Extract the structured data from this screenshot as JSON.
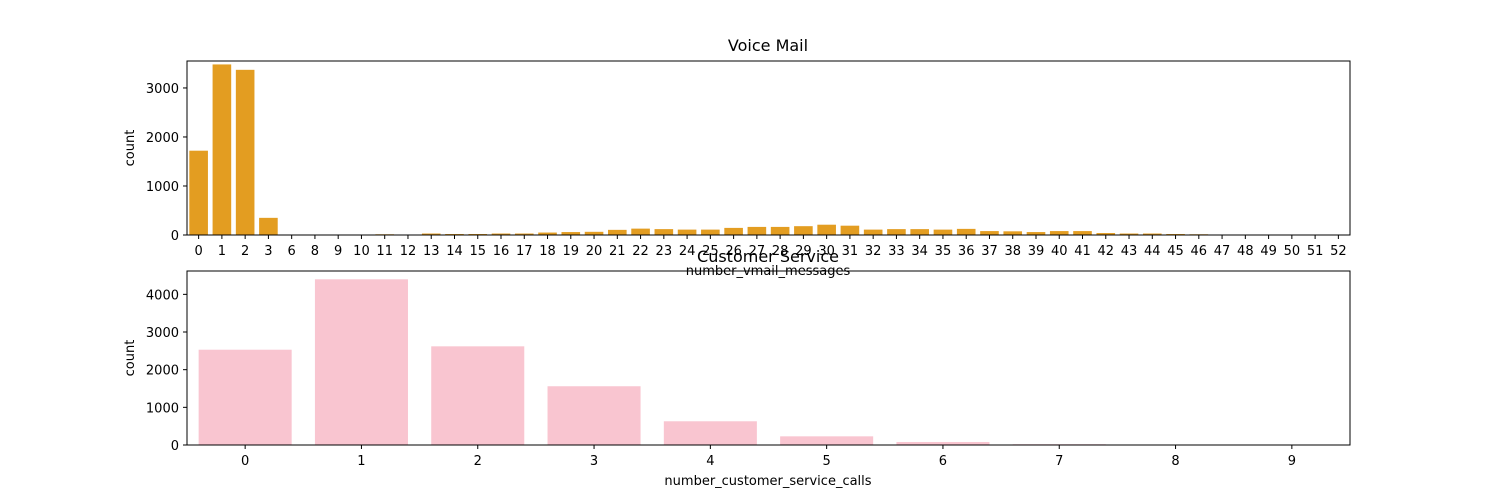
{
  "chart_data": [
    {
      "type": "bar",
      "title": "Voice Mail",
      "xlabel": "number_vmail_messages",
      "ylabel": "count",
      "color": "#e39d21",
      "ylim": [
        0,
        3550
      ],
      "yticks": [
        0,
        1000,
        2000,
        3000
      ],
      "categories": [
        "0",
        "1",
        "2",
        "3",
        "6",
        "8",
        "9",
        "10",
        "11",
        "12",
        "13",
        "14",
        "15",
        "16",
        "17",
        "18",
        "19",
        "20",
        "21",
        "22",
        "23",
        "24",
        "25",
        "26",
        "27",
        "28",
        "29",
        "30",
        "31",
        "32",
        "33",
        "34",
        "35",
        "36",
        "37",
        "38",
        "39",
        "40",
        "41",
        "42",
        "43",
        "44",
        "45",
        "46",
        "47",
        "48",
        "49",
        "50",
        "51",
        "52"
      ],
      "values": [
        1720,
        3480,
        3370,
        350,
        5,
        5,
        5,
        5,
        15,
        5,
        30,
        20,
        20,
        30,
        30,
        50,
        60,
        65,
        105,
        130,
        120,
        110,
        110,
        145,
        165,
        165,
        180,
        210,
        190,
        110,
        120,
        120,
        110,
        125,
        80,
        75,
        60,
        80,
        80,
        40,
        30,
        30,
        20,
        15,
        10,
        5,
        5,
        5,
        3,
        3
      ]
    },
    {
      "type": "bar",
      "title": "Customer Service",
      "xlabel": "number_customer_service_calls",
      "ylabel": "count",
      "color": "#f9c5d0",
      "ylim": [
        0,
        4620
      ],
      "yticks": [
        0,
        1000,
        2000,
        3000,
        4000
      ],
      "categories": [
        "0",
        "1",
        "2",
        "3",
        "4",
        "5",
        "6",
        "7",
        "8",
        "9"
      ],
      "values": [
        2530,
        4400,
        2620,
        1560,
        630,
        230,
        80,
        20,
        5,
        3
      ]
    }
  ]
}
